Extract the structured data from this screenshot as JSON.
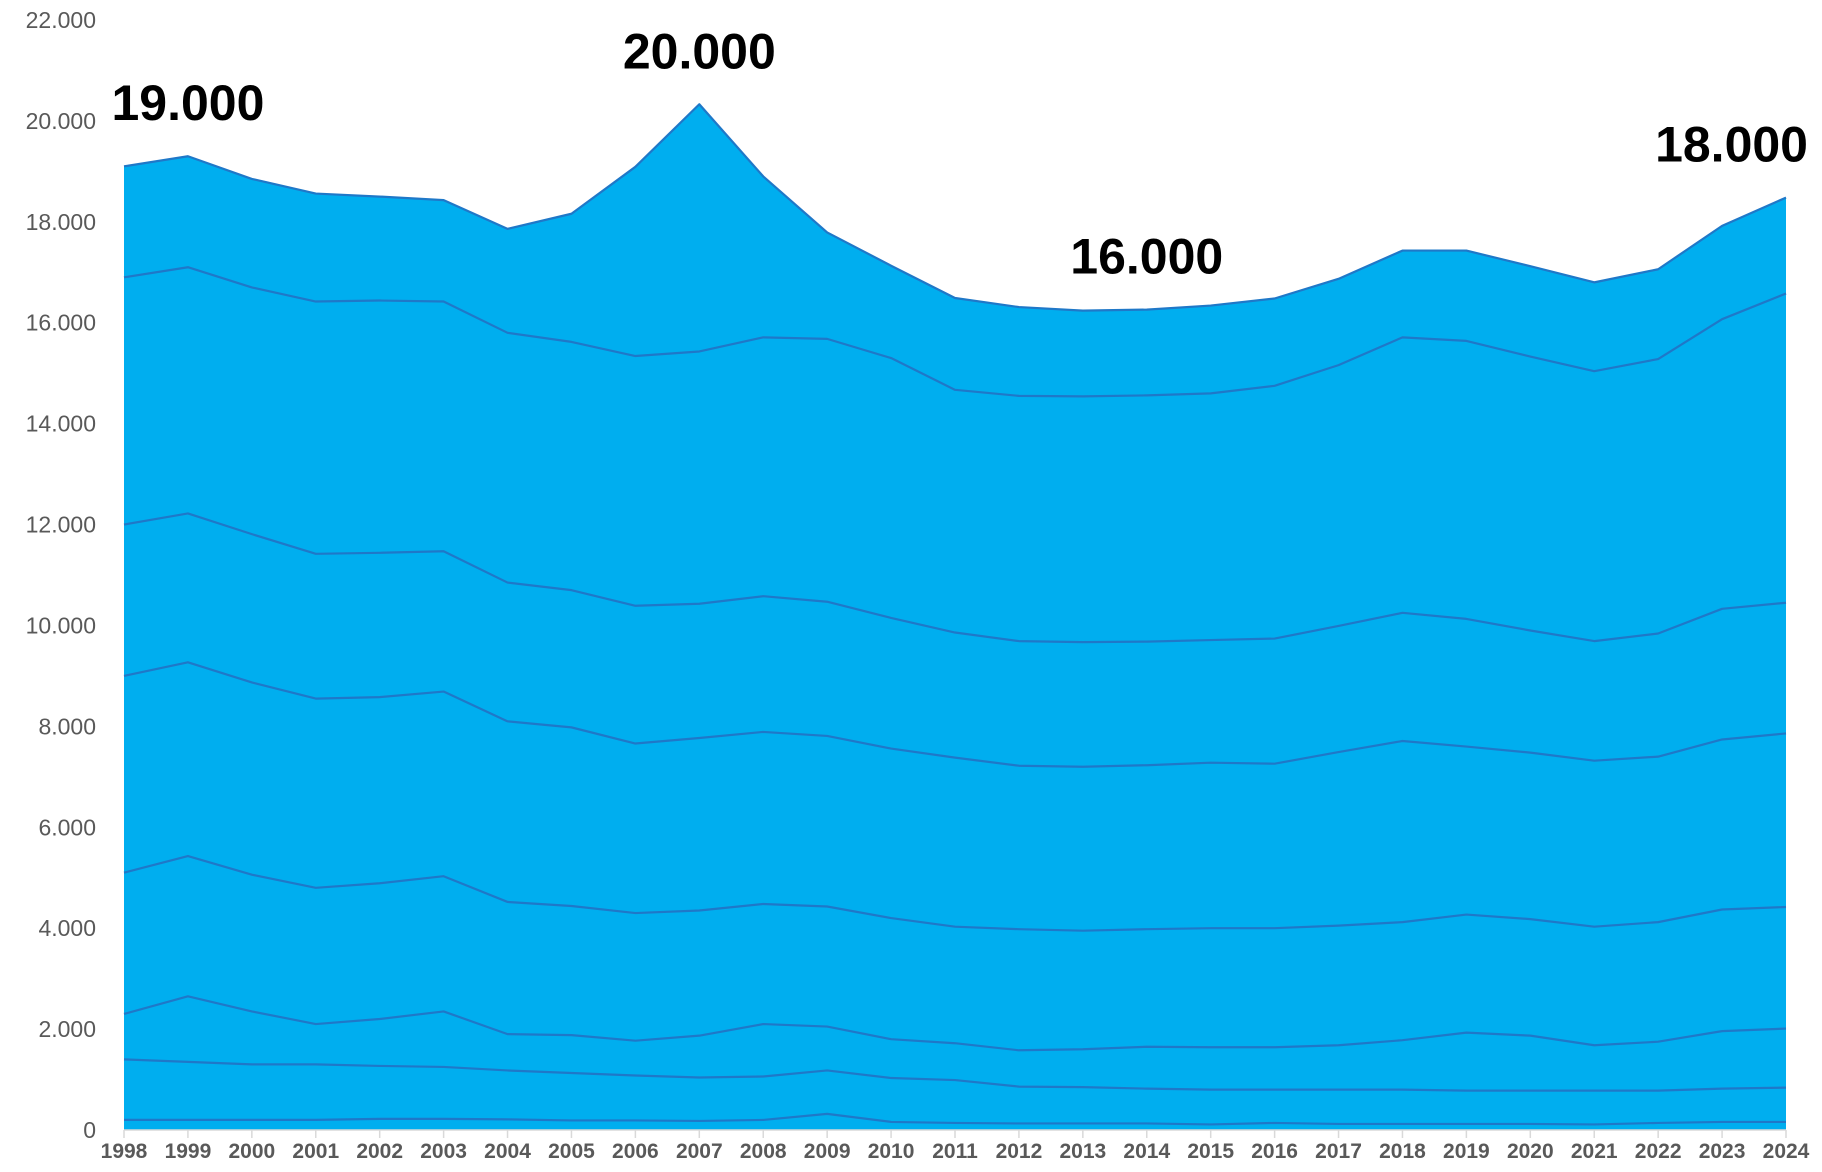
{
  "chart_data": {
    "type": "area",
    "stacked": true,
    "grid": false,
    "legend": "none",
    "xlabel": "",
    "ylabel": "",
    "ylim": [
      0,
      22000
    ],
    "y_ticks": [
      0,
      2000,
      4000,
      6000,
      8000,
      10000,
      12000,
      14000,
      16000,
      18000,
      20000,
      22000
    ],
    "y_tick_labels": [
      "0",
      "2.000",
      "4.000",
      "6.000",
      "8.000",
      "10.000",
      "12.000",
      "14.000",
      "16.000",
      "18.000",
      "20.000",
      "22.000"
    ],
    "x": [
      "1998",
      "1999",
      "2000",
      "2001",
      "2002",
      "2003",
      "2004",
      "2005",
      "2006",
      "2007",
      "2008",
      "2009",
      "2010",
      "2011",
      "2012",
      "2013",
      "2014",
      "2015",
      "2016",
      "2017",
      "2018",
      "2019",
      "2020",
      "2021",
      "2022",
      "2023",
      "2024"
    ],
    "fill_color": "#00AEEF",
    "line_color": "#1F78C8",
    "cumulative_boundaries": [
      [
        200,
        200,
        200,
        200,
        220,
        220,
        210,
        190,
        190,
        180,
        200,
        320,
        160,
        140,
        130,
        130,
        130,
        110,
        140,
        120,
        120,
        120,
        120,
        110,
        140,
        160,
        160
      ],
      [
        1400,
        1350,
        1300,
        1300,
        1270,
        1250,
        1180,
        1130,
        1080,
        1040,
        1060,
        1180,
        1030,
        990,
        860,
        850,
        820,
        800,
        800,
        800,
        800,
        780,
        780,
        780,
        780,
        820,
        840
      ],
      [
        2300,
        2650,
        2350,
        2100,
        2200,
        2350,
        1900,
        1880,
        1770,
        1870,
        2100,
        2050,
        1800,
        1720,
        1580,
        1600,
        1650,
        1640,
        1640,
        1680,
        1780,
        1930,
        1870,
        1680,
        1750,
        1960,
        2010
      ],
      [
        5100,
        5430,
        5060,
        4800,
        4890,
        5030,
        4520,
        4440,
        4300,
        4350,
        4480,
        4430,
        4200,
        4030,
        3980,
        3950,
        3980,
        4000,
        4000,
        4050,
        4120,
        4270,
        4180,
        4030,
        4120,
        4370,
        4420
      ],
      [
        9000,
        9270,
        8870,
        8550,
        8580,
        8690,
        8100,
        7980,
        7660,
        7770,
        7890,
        7810,
        7560,
        7380,
        7220,
        7200,
        7230,
        7280,
        7260,
        7490,
        7710,
        7600,
        7480,
        7320,
        7400,
        7740,
        7860
      ],
      [
        12000,
        12220,
        11810,
        11420,
        11440,
        11470,
        10850,
        10700,
        10390,
        10430,
        10580,
        10470,
        10150,
        9860,
        9690,
        9670,
        9680,
        9710,
        9740,
        9990,
        10250,
        10130,
        9900,
        9690,
        9840,
        10330,
        10450
      ],
      [
        16900,
        17100,
        16700,
        16420,
        16440,
        16420,
        15800,
        15620,
        15340,
        15430,
        15710,
        15680,
        15300,
        14670,
        14550,
        14540,
        14560,
        14600,
        14750,
        15160,
        15710,
        15640,
        15330,
        15040,
        15280,
        16070,
        16580
      ],
      [
        19100,
        19300,
        18850,
        18560,
        18500,
        18430,
        17860,
        18160,
        19090,
        20330,
        18900,
        17790,
        17130,
        16490,
        16310,
        16240,
        16260,
        16340,
        16480,
        16870,
        17430,
        17430,
        17120,
        16800,
        17060,
        17920,
        18480
      ]
    ],
    "annotations": [
      {
        "text": "19.000",
        "x": "1999"
      },
      {
        "text": "20.000",
        "x": "2007"
      },
      {
        "text": "16.000",
        "x": "2014"
      },
      {
        "text": "18.000",
        "x": "2024"
      }
    ]
  }
}
